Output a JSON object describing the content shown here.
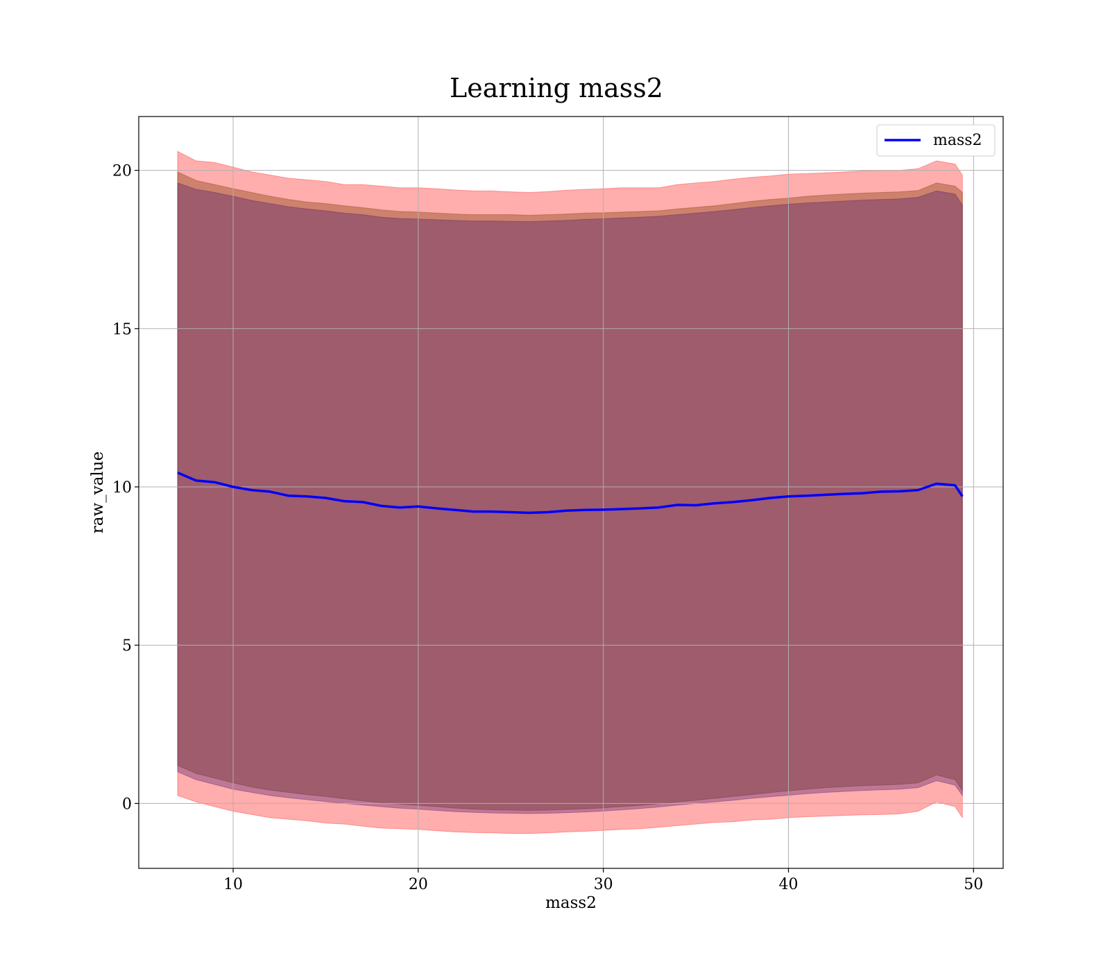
{
  "chart_data": {
    "type": "area",
    "title": "Learning mass2",
    "xlabel": "mass2",
    "ylabel": "raw_value",
    "xlim": [
      4.9,
      51.6
    ],
    "ylim": [
      -2.05,
      21.7
    ],
    "x_ticks": [
      10,
      20,
      30,
      40,
      50
    ],
    "y_ticks": [
      0,
      5,
      10,
      15,
      20
    ],
    "grid": true,
    "legend_position": "top-right",
    "x": [
      7.0,
      8.0,
      9.0,
      10.0,
      11.0,
      12.0,
      13.0,
      14.0,
      15.0,
      16.0,
      17.0,
      18.0,
      19.0,
      20.0,
      21.0,
      22.0,
      23.0,
      24.0,
      25.0,
      26.0,
      27.0,
      28.0,
      29.0,
      30.0,
      31.0,
      32.0,
      33.0,
      34.0,
      35.0,
      36.0,
      37.0,
      38.0,
      39.0,
      40.0,
      41.0,
      42.0,
      43.0,
      44.0,
      45.0,
      46.0,
      47.0,
      48.0,
      49.0,
      49.4
    ],
    "bands": [
      {
        "color": "#ff0000",
        "opacity": 0.32,
        "upper": [
          20.6,
          20.3,
          20.25,
          20.1,
          19.95,
          19.85,
          19.75,
          19.7,
          19.65,
          19.55,
          19.55,
          19.5,
          19.45,
          19.45,
          19.42,
          19.38,
          19.35,
          19.35,
          19.32,
          19.3,
          19.33,
          19.37,
          19.4,
          19.42,
          19.45,
          19.45,
          19.45,
          19.55,
          19.6,
          19.65,
          19.72,
          19.78,
          19.82,
          19.88,
          19.9,
          19.92,
          19.95,
          19.98,
          20.0,
          20.0,
          20.05,
          20.3,
          20.2,
          19.85
        ],
        "lower": [
          0.25,
          0.05,
          -0.1,
          -0.25,
          -0.35,
          -0.45,
          -0.5,
          -0.55,
          -0.62,
          -0.65,
          -0.72,
          -0.78,
          -0.8,
          -0.82,
          -0.86,
          -0.9,
          -0.92,
          -0.93,
          -0.95,
          -0.95,
          -0.93,
          -0.9,
          -0.88,
          -0.85,
          -0.82,
          -0.8,
          -0.75,
          -0.7,
          -0.65,
          -0.6,
          -0.58,
          -0.52,
          -0.5,
          -0.45,
          -0.42,
          -0.4,
          -0.38,
          -0.36,
          -0.35,
          -0.33,
          -0.25,
          0.05,
          -0.1,
          -0.45
        ]
      },
      {
        "color": "#8b4513",
        "opacity": 0.42,
        "upper": [
          19.95,
          19.68,
          19.55,
          19.42,
          19.3,
          19.18,
          19.08,
          19.0,
          18.95,
          18.88,
          18.82,
          18.75,
          18.7,
          18.68,
          18.65,
          18.62,
          18.6,
          18.6,
          18.6,
          18.58,
          18.6,
          18.62,
          18.65,
          18.66,
          18.68,
          18.7,
          18.72,
          18.78,
          18.83,
          18.88,
          18.95,
          19.02,
          19.08,
          19.12,
          19.18,
          19.22,
          19.25,
          19.28,
          19.3,
          19.32,
          19.36,
          19.6,
          19.5,
          19.3
        ],
        "lower": [
          1.2,
          0.95,
          0.8,
          0.65,
          0.52,
          0.42,
          0.35,
          0.28,
          0.22,
          0.15,
          0.08,
          0.02,
          -0.02,
          -0.06,
          -0.1,
          -0.15,
          -0.18,
          -0.2,
          -0.21,
          -0.22,
          -0.21,
          -0.19,
          -0.17,
          -0.14,
          -0.1,
          -0.06,
          -0.01,
          0.05,
          0.1,
          0.16,
          0.22,
          0.28,
          0.34,
          0.4,
          0.45,
          0.5,
          0.53,
          0.56,
          0.58,
          0.6,
          0.65,
          0.9,
          0.75,
          0.4
        ]
      },
      {
        "color": "#4a1b6b",
        "opacity": 0.36,
        "upper": [
          19.6,
          19.4,
          19.3,
          19.18,
          19.05,
          18.95,
          18.85,
          18.78,
          18.72,
          18.65,
          18.6,
          18.52,
          18.48,
          18.46,
          18.44,
          18.42,
          18.4,
          18.4,
          18.39,
          18.38,
          18.4,
          18.42,
          18.45,
          18.47,
          18.5,
          18.52,
          18.55,
          18.6,
          18.65,
          18.7,
          18.76,
          18.82,
          18.88,
          18.93,
          18.97,
          19.0,
          19.03,
          19.06,
          19.08,
          19.1,
          19.15,
          19.35,
          19.25,
          18.9
        ],
        "lower": [
          1.0,
          0.75,
          0.6,
          0.45,
          0.35,
          0.25,
          0.18,
          0.12,
          0.06,
          0.0,
          -0.05,
          -0.1,
          -0.15,
          -0.18,
          -0.22,
          -0.26,
          -0.28,
          -0.3,
          -0.31,
          -0.32,
          -0.31,
          -0.29,
          -0.27,
          -0.24,
          -0.2,
          -0.16,
          -0.11,
          -0.05,
          0.0,
          0.05,
          0.1,
          0.16,
          0.21,
          0.26,
          0.31,
          0.35,
          0.38,
          0.41,
          0.43,
          0.45,
          0.5,
          0.72,
          0.58,
          0.25
        ]
      }
    ],
    "series": [
      {
        "name": "mass2",
        "color": "#0000ff",
        "values": [
          10.45,
          10.2,
          10.15,
          10.0,
          9.9,
          9.85,
          9.72,
          9.7,
          9.65,
          9.55,
          9.52,
          9.4,
          9.35,
          9.38,
          9.32,
          9.27,
          9.22,
          9.22,
          9.2,
          9.18,
          9.2,
          9.25,
          9.27,
          9.28,
          9.3,
          9.32,
          9.35,
          9.43,
          9.42,
          9.48,
          9.52,
          9.58,
          9.65,
          9.7,
          9.72,
          9.75,
          9.78,
          9.8,
          9.85,
          9.86,
          9.9,
          10.1,
          10.05,
          9.7
        ]
      }
    ]
  }
}
